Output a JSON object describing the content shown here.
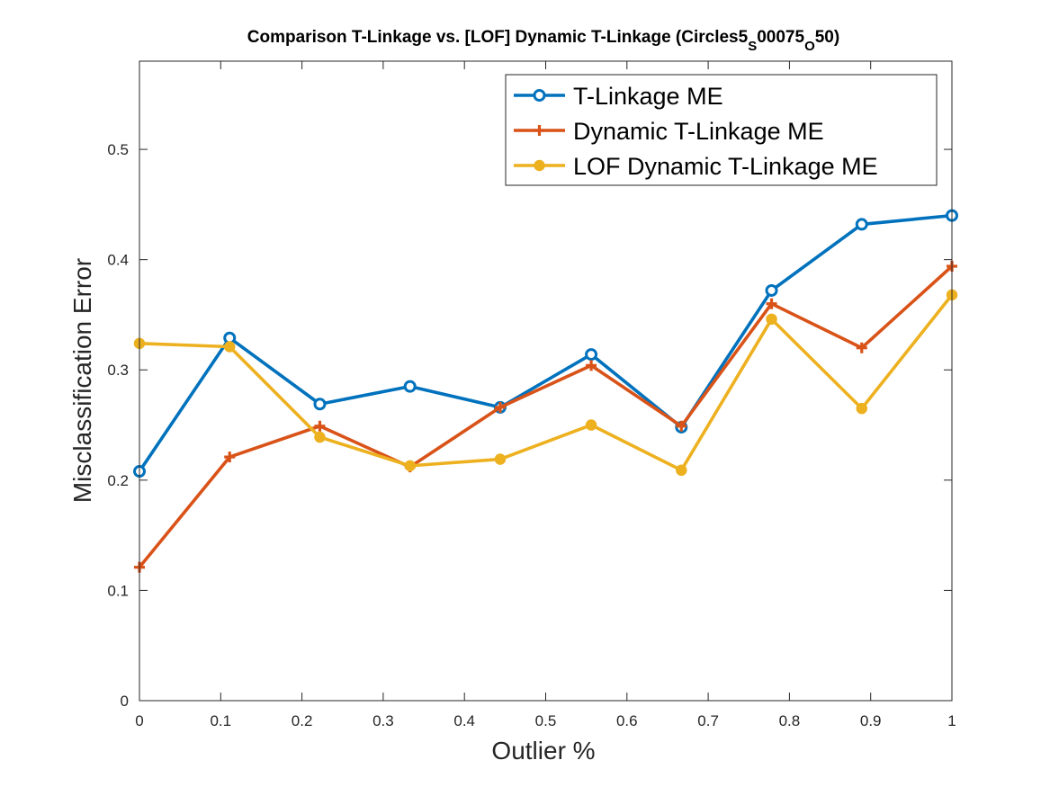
{
  "chart_data": {
    "type": "line",
    "title": {
      "main": "Comparison T-Linkage vs. [LOF] Dynamic T-Linkage (Circles5",
      "sub1": "S",
      "mid": "00075",
      "sub2": "O",
      "end": "50)"
    },
    "xlabel": "Outlier %",
    "ylabel": "Misclassification Error",
    "xlim": [
      0,
      1
    ],
    "ylim": [
      0,
      0.58
    ],
    "xticks": [
      0,
      0.1,
      0.2,
      0.3,
      0.4,
      0.5,
      0.6,
      0.7,
      0.8,
      0.9,
      1
    ],
    "xtick_labels": [
      "0",
      "0.1",
      "0.2",
      "0.3",
      "0.4",
      "0.5",
      "0.6",
      "0.7",
      "0.8",
      "0.9",
      "1"
    ],
    "yticks": [
      0,
      0.1,
      0.2,
      0.3,
      0.4,
      0.5
    ],
    "ytick_labels": [
      "0",
      "0.1",
      "0.2",
      "0.3",
      "0.4",
      "0.5"
    ],
    "grid": false,
    "legend_position": "top-right",
    "x": [
      0,
      0.111,
      0.222,
      0.333,
      0.444,
      0.556,
      0.667,
      0.778,
      0.889,
      1.0
    ],
    "series": [
      {
        "name": "T-Linkage ME",
        "color": "#0072BD",
        "marker": "circle",
        "values": [
          0.208,
          0.329,
          0.269,
          0.285,
          0.266,
          0.314,
          0.248,
          0.372,
          0.432,
          0.44
        ]
      },
      {
        "name": "Dynamic T-Linkage ME",
        "color": "#D95319",
        "marker": "plus",
        "values": [
          0.121,
          0.221,
          0.249,
          0.212,
          0.266,
          0.304,
          0.249,
          0.36,
          0.32,
          0.394
        ]
      },
      {
        "name": "LOF Dynamic T-Linkage ME",
        "color": "#EDB120",
        "marker": "filled-circle",
        "values": [
          0.324,
          0.321,
          0.239,
          0.213,
          0.219,
          0.25,
          0.209,
          0.346,
          0.265,
          0.368
        ]
      }
    ]
  }
}
